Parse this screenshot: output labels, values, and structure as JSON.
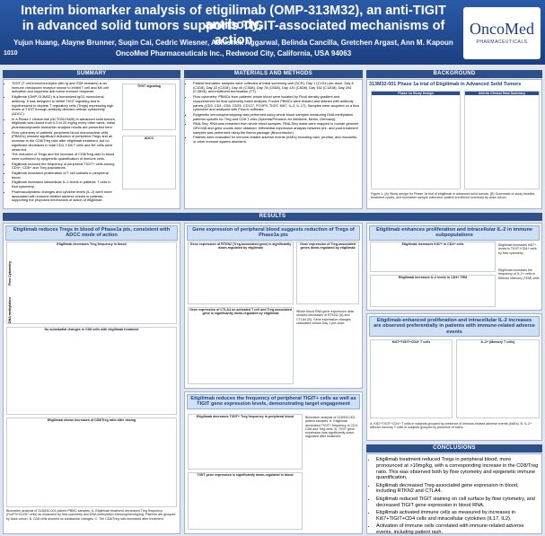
{
  "header": {
    "poster_number": "1010",
    "title_line1": "Interim biomarker analysis of etigilimab (OMP-313M32), an anti-TIGIT antibody,",
    "title_line2": "in advanced solid tumors supports TIGIT-associated mechanisms of action",
    "authors": "Yujun Huang, Alayne Brunner, Suqin Cai, Cedric Wiesner, Abhishek Aggarwal, Belinda Cancilla, Gretchen Argast, Ann M. Kapoun",
    "affiliation": "OncoMed Pharmaceuticals Inc., Redwood City, California, USA 94063",
    "logo": "OncoMed",
    "logo_sub": "PHARMACEUTICALS"
  },
  "summary": {
    "heading": "SUMMARY",
    "bullets": [
      "TIGIT (T cell immunoreceptor with Ig and ITIM domains) is an immune checkpoint receptor shown to inhibit T cell and NK cell activation and suppress anti-tumor immune response.",
      "Etigilimab (OMP-313M32) is a humanized IgG1 monoclonal antibody. It was designed to inhibit TIGIT signaling and is hypothesized to deplete T regulatory cells (Tregs) expressing high levels of TIGIT through antibody-directed cellular cytotoxicity (ADCC).",
      "In a Phase 1 clinical trial (NCT03119428) in advanced solid tumors, etigilimab was dosed from 0.3 to 20 mg/kg every other week. Initial pharmacodynamic biomarker analysis results are presented here.",
      "Flow cytometry of patients' peripheral blood mononuclear cells (PBMCs) showed significant reduction of peripheral Tregs and an increase in the CD8/Treg ratio after etigilimab treatment, but no significant decreases in total CD4, CD8 T cells and NK cells were observed.",
      "The reduction of Tregs and the increase of CD8/Treg ratio in blood were confirmed by epigenetic quantification of immune cells.",
      "Etigilimab reduced the frequency of peripheral TIGIT+ cells among CD4+, CD8+ and Treg populations.",
      "Etigilimab increased proliferation of T cell subsets in peripheral blood.",
      "Etigilimab increased intracellular IL-2 levels in patients' T cells in flow cytometry.",
      "Pharmacodynamic changes and cytokine levels (IL-2) were more associated with immune-related adverse events in patients, supporting the proposed mechanism of action of etigilimab."
    ],
    "fig_labels": [
      "TIGIT signaling",
      "ADCC"
    ]
  },
  "methods": {
    "heading": "MATERIALS AND METHODS",
    "bullets": [
      "Patient biomarker samples were collected at initial screening visit (SCR), Day 1 (C1D1) pre-dose, Day 8 (C1D8), Day 22 (C2D8), Day 40 (C3D8), Day 78 (C5D8), Day 120 (C8D8), Day 162 (C12D8), Day 204 (C15D8), and treatment termination (TT).",
      "Flow cytometry: PBMCs from patients' whole blood were isolated by Ficoll density gradient and cryopreserved for flow cytometry batch analysis. Frozen PBMCs were thawed and stained with antibody panels (CD3, CD4, CD8, CD25, CD127, FOXP3, TIGIT, Ki67, IL-2, IL-17). Samples were acquired on a flow cytometer and analyzed with FlowJo software.",
      "Epigenetic immunophenotyping was performed using whole blood samples measuring DNA methylation patterns specific for Treg and CD8 T cells (Epiontis/Precision for Medicine, Berlin, Germany).",
      "RNA-Seq: RNA was extracted from whole blood samples. RNA-Seq reads were mapped to human genome GRCh38 and gene counts were obtained. Differential expression analysis between pre- and post-treatment samples was performed using the limma package (Bioconductor).",
      "Patients were evaluated for immune-related adverse events (irAEs) including rash, pruritus, and mucositis, or other immune system disorders."
    ]
  },
  "background": {
    "heading": "BACKGROUND",
    "figure_title": "313M32-001 Phase 1a trial of Etigilimab in Advanced Solid Tumors",
    "panel_a": "Phase 1a Study Design",
    "panel_b": "Interim Clinical Data Summary",
    "caption": "Figure 1. (A) Study design for Phase 1a trial of etigilimab in advanced solid tumors. (B) Schematic of study timeline, treatment cycles, and biomarker sample collection; patient enrollment summary by dose cohort."
  },
  "results": {
    "heading": "RESULTS",
    "left": {
      "title": "Etigilimab reduces Tregs in blood of Phase1a pts, consistent with ADCC mode of action",
      "figs": [
        "Etigilimab decreases Treg frequency in blood",
        "No substantial changes in CD8 cells with etigilimab treatment",
        "Etigilimab shows increases of CD8/Treg ratio after dosing"
      ],
      "row_labels": [
        "Flow Cytometry",
        "DNA methylation"
      ],
      "caption": "Biomarker analysis of 313M32-001 patient PBMC samples. A. Etigilimab treatment decreased Treg frequency (FoxP3+CD25+ cells) as measured by flow cytometry and DNA methylation immunophenotyping. Patients are grouped by dose cohort. B. CD8 cells showed no substantial changes. C. The CD8/Treg ratio increased after treatment."
    },
    "mid_top": {
      "title": "Gene expression of peripheral blood suggests reduction of Tregs of Phase1a pts",
      "figs": [
        "Gene expression of RTKN2 (Treg-associated gene) is significantly down-regulated by etigilimab",
        "Gene expression of CTLA4 on activated T cell and Treg-associated gene is significantly down-regulated by etigilimab",
        "Gene expression of Treg-associated genes down-regulated by etigilimab"
      ],
      "caption": "Whole blood RNA gene expression data showed decreases of RTKN2 (A) and CTLA4 (B). Gene expression changes calculated versus Day 1 pre-dose."
    },
    "mid_bottom": {
      "title": "Etigilimab reduces the frequency of peripheral TIGIT+ cells as well as TIGIT gene expression levels, demonstrating target engagement",
      "figs": [
        "Etigilimab decreases TIGIT+ Treg frequency in peripheral blood",
        "TIGIT gene expression is significantly down-regulated in blood"
      ],
      "caption": "Biomarker analysis of 313M32-001 patient samples. A. Etigilimab decreased TIGIT+ frequency in CD4, CD8 and Treg cells. B. TIGIT gene expression was significantly down-regulated after treatment."
    },
    "right_top": {
      "title": "Etigilimab enhances proliferation and intracellular IL-2 in immune subpopulations",
      "figs": [
        "Etigilimab increases Ki67+ in CD4+ cells",
        "Etigilimab increases IL-2 levels in CD4+ TEM"
      ],
      "notes": [
        "Etigilimab increases Ki67+ levels in TIGIT+CD4+ cells by flow cytometry",
        "Etigilimab increases the frequency of IL-2+ cells in Effector Memory (TEM) cells"
      ]
    },
    "right_mid": {
      "title": "Etigilimab-enhanced proliferation and intracellular IL-2 increases are observed preferentially in patients with immune-related adverse events",
      "figs": [
        "Ki67+TIGIT+CD4+ T cells",
        "IL-2+ (Memory T cells)"
      ],
      "caption": "A. Ki67+TIGIT+CD4+ T cells in subjects grouped by presence of immune-related adverse events (irAEs). B. IL-2+ effector memory T cells in subjects grouped by presence of irAEs."
    }
  },
  "conclusions": {
    "heading": "CONCLUSIONS",
    "bullets": [
      "Etigilimab treatment reduced Tregs in peripheral blood, more pronounced at >10mg/kg, with a corresponding increase in the CD8/Treg ratio. This was observed both by flow cytometry and epigenetic immune quantification.",
      "Etigilimab decreased Treg-associated gene expression in blood, including RTKN2 and CTLA4.",
      "Etigilimab reduced TIGIT staining on cell surface by flow cytometry, and decreased TIGIT gene expression in blood RNA.",
      "Etigilimab activated immune cells as measured by increases in Ki67+TIGIT+CD4 cells and intracellular cytokines (IL17, IL2).",
      "Activation of immune cells correlated with immune-related adverse events, including patient rash."
    ]
  }
}
